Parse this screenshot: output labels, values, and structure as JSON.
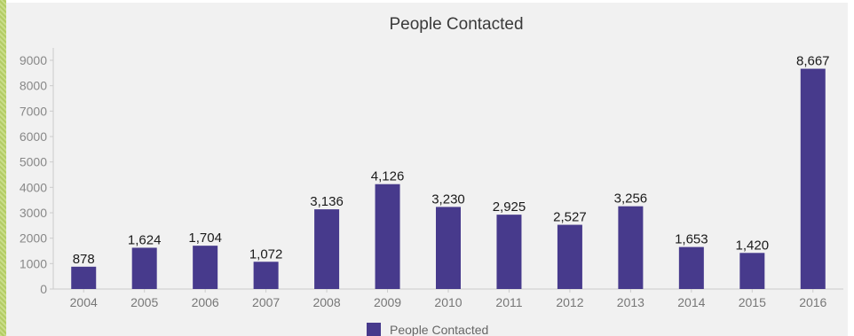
{
  "chart_data": {
    "type": "bar",
    "title": "People Contacted",
    "xlabel": "",
    "ylabel": "",
    "categories": [
      "2004",
      "2005",
      "2006",
      "2007",
      "2008",
      "2009",
      "2010",
      "2011",
      "2012",
      "2013",
      "2014",
      "2015",
      "2016"
    ],
    "series": [
      {
        "name": "People Contacted",
        "values": [
          878,
          1624,
          1704,
          1072,
          3136,
          4126,
          3230,
          2925,
          2527,
          3256,
          1653,
          1420,
          8667
        ],
        "labels": [
          "878",
          "1,624",
          "1,704",
          "1,072",
          "3,136",
          "4,126",
          "3,230",
          "2,925",
          "2,527",
          "3,256",
          "1,653",
          "1,420",
          "8,667"
        ]
      }
    ],
    "ylim": [
      0,
      9000
    ],
    "yticks": [
      0,
      1000,
      2000,
      3000,
      4000,
      5000,
      6000,
      7000,
      8000,
      9000
    ],
    "grid": false,
    "legend": "bottom-center",
    "bar_color": "#473a8c"
  }
}
